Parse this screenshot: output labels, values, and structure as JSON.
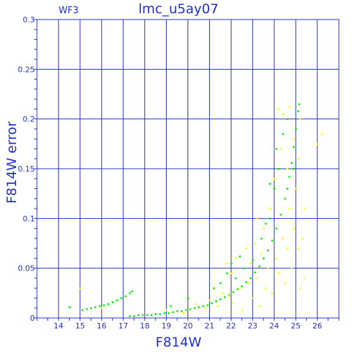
{
  "chart_data": {
    "type": "scatter",
    "title": "lmc_u5ay07",
    "annotation": "WF3",
    "xlabel": "F814W",
    "ylabel": "F814W error",
    "xlim": [
      13,
      27
    ],
    "ylim": [
      0,
      0.3
    ],
    "xticks": [
      14,
      15,
      16,
      17,
      18,
      19,
      20,
      21,
      22,
      23,
      24,
      25,
      26
    ],
    "yticks": [
      0,
      0.05,
      0.1,
      0.15,
      0.2,
      0.25,
      0.3
    ],
    "ytick_labels": [
      "0",
      "0.05",
      "0.1",
      "0.15",
      "0.2",
      "0.25",
      "0.3"
    ],
    "grid": true,
    "axis_color": "#2030c8",
    "series": [
      {
        "color": "#00ee00",
        "points": [
          [
            14.5,
            0.011
          ],
          [
            15.1,
            0.008
          ],
          [
            15.3,
            0.009
          ],
          [
            15.5,
            0.01
          ],
          [
            15.7,
            0.011
          ],
          [
            15.9,
            0.012
          ],
          [
            16.1,
            0.013
          ],
          [
            16.3,
            0.014
          ],
          [
            16.5,
            0.016
          ],
          [
            16.7,
            0.018
          ],
          [
            16.9,
            0.02
          ],
          [
            17.1,
            0.022
          ],
          [
            17.3,
            0.025
          ],
          [
            17.4,
            0.027
          ],
          [
            17.3,
            0.002
          ],
          [
            17.5,
            0.002
          ],
          [
            17.7,
            0.003
          ],
          [
            17.9,
            0.003
          ],
          [
            18.1,
            0.003
          ],
          [
            18.3,
            0.003
          ],
          [
            18.5,
            0.004
          ],
          [
            18.7,
            0.004
          ],
          [
            18.9,
            0.005
          ],
          [
            19.1,
            0.005
          ],
          [
            19.3,
            0.006
          ],
          [
            19.5,
            0.007
          ],
          [
            19.7,
            0.007
          ],
          [
            19.9,
            0.008
          ],
          [
            20.1,
            0.009
          ],
          [
            20.3,
            0.01
          ],
          [
            20.5,
            0.011
          ],
          [
            20.7,
            0.012
          ],
          [
            20.9,
            0.013
          ],
          [
            21.1,
            0.015
          ],
          [
            21.3,
            0.017
          ],
          [
            21.5,
            0.019
          ],
          [
            21.7,
            0.021
          ],
          [
            21.9,
            0.023
          ],
          [
            22.1,
            0.026
          ],
          [
            22.3,
            0.029
          ],
          [
            22.5,
            0.032
          ],
          [
            22.7,
            0.036
          ],
          [
            22.9,
            0.04
          ],
          [
            23.1,
            0.046
          ],
          [
            23.3,
            0.052
          ],
          [
            23.5,
            0.06
          ],
          [
            23.7,
            0.068
          ],
          [
            23.9,
            0.078
          ],
          [
            24.1,
            0.09
          ],
          [
            24.3,
            0.104
          ],
          [
            24.5,
            0.12
          ],
          [
            24.6,
            0.13
          ],
          [
            24.7,
            0.142
          ],
          [
            24.8,
            0.156
          ],
          [
            24.9,
            0.172
          ],
          [
            25.0,
            0.19
          ],
          [
            25.1,
            0.208
          ],
          [
            25.15,
            0.215
          ],
          [
            23.0,
            0.058
          ],
          [
            23.4,
            0.08
          ],
          [
            23.8,
            0.1
          ],
          [
            24.1,
            0.17
          ],
          [
            24.2,
            0.15
          ],
          [
            24.0,
            0.13
          ],
          [
            22.6,
            0.05
          ],
          [
            22.2,
            0.04
          ],
          [
            22.0,
            0.055
          ],
          [
            21.5,
            0.035
          ],
          [
            22.4,
            0.062
          ],
          [
            23.6,
            0.095
          ],
          [
            24.4,
            0.185
          ],
          [
            24.6,
            0.2
          ],
          [
            24.9,
            0.15
          ],
          [
            23.8,
            0.135
          ],
          [
            21.8,
            0.045
          ],
          [
            21.2,
            0.03
          ],
          [
            20.0,
            0.02
          ],
          [
            19.2,
            0.012
          ]
        ]
      },
      {
        "color": "#ffff00",
        "points": [
          [
            15.0,
            0.03
          ],
          [
            16.0,
            0.01
          ],
          [
            19.0,
            0.008
          ],
          [
            19.8,
            0.005
          ],
          [
            20.4,
            0.014
          ],
          [
            20.8,
            0.01
          ],
          [
            21.0,
            0.018
          ],
          [
            21.4,
            0.012
          ],
          [
            21.6,
            0.025
          ],
          [
            21.8,
            0.055
          ],
          [
            22.0,
            0.045
          ],
          [
            22.1,
            0.015
          ],
          [
            22.2,
            0.06
          ],
          [
            22.4,
            0.03
          ],
          [
            22.5,
            0.008
          ],
          [
            22.7,
            0.07
          ],
          [
            22.8,
            0.035
          ],
          [
            23.0,
            0.02
          ],
          [
            23.1,
            0.075
          ],
          [
            23.2,
            0.04
          ],
          [
            23.3,
            0.012
          ],
          [
            23.4,
            0.065
          ],
          [
            23.5,
            0.09
          ],
          [
            23.6,
            0.03
          ],
          [
            23.7,
            0.05
          ],
          [
            23.8,
            0.11
          ],
          [
            23.9,
            0.025
          ],
          [
            24.0,
            0.14
          ],
          [
            24.1,
            0.06
          ],
          [
            24.2,
            0.045
          ],
          [
            24.3,
            0.17
          ],
          [
            24.4,
            0.08
          ],
          [
            24.5,
            0.035
          ],
          [
            24.6,
            0.15
          ],
          [
            24.7,
            0.11
          ],
          [
            24.8,
            0.05
          ],
          [
            24.9,
            0.09
          ],
          [
            25.0,
            0.13
          ],
          [
            25.1,
            0.07
          ],
          [
            25.2,
            0.03
          ],
          [
            25.3,
            0.08
          ],
          [
            25.4,
            0.11
          ],
          [
            25.4,
            0.04
          ],
          [
            26.0,
            0.175
          ],
          [
            26.2,
            0.185
          ],
          [
            24.2,
            0.21
          ],
          [
            24.4,
            0.205
          ],
          [
            24.7,
            0.212
          ],
          [
            25.2,
            0.2
          ],
          [
            24.9,
            0.18
          ],
          [
            23.2,
            0.1
          ],
          [
            22.9,
            0.055
          ],
          [
            21.9,
            0.022
          ],
          [
            24.6,
            0.07
          ],
          [
            25.1,
            0.16
          ]
        ]
      }
    ]
  }
}
